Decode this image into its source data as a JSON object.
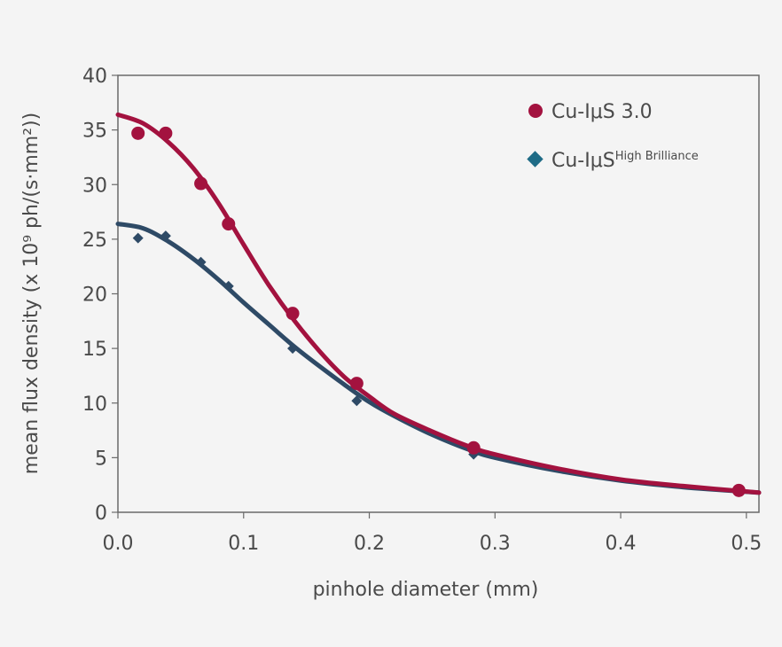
{
  "chart_data": {
    "type": "scatter",
    "xlabel": "pinhole diameter (mm)",
    "ylabel": "mean flux density (x 10⁹ ph/(s·mm²))",
    "xlim": [
      0,
      0.51
    ],
    "ylim": [
      0,
      40
    ],
    "xticks": [
      "0.0",
      "0.1",
      "0.2",
      "0.3",
      "0.4",
      "0.5"
    ],
    "yticks": [
      "0",
      "5",
      "10",
      "15",
      "20",
      "25",
      "30",
      "35",
      "40"
    ],
    "grid": false,
    "legend_position": "top-right",
    "series": [
      {
        "name": "Cu-IμS 3.0",
        "color": "#a3123f",
        "marker": "circle",
        "points": [
          [
            0.016,
            34.7
          ],
          [
            0.038,
            34.7
          ],
          [
            0.066,
            30.1
          ],
          [
            0.088,
            26.4
          ],
          [
            0.139,
            18.2
          ],
          [
            0.19,
            11.8
          ],
          [
            0.283,
            5.9
          ],
          [
            0.494,
            2.0
          ]
        ],
        "fit": [
          [
            0,
            36.4
          ],
          [
            0.02,
            35.6
          ],
          [
            0.04,
            33.9
          ],
          [
            0.06,
            31.5
          ],
          [
            0.08,
            28.3
          ],
          [
            0.1,
            24.5
          ],
          [
            0.12,
            20.8
          ],
          [
            0.14,
            17.6
          ],
          [
            0.16,
            14.8
          ],
          [
            0.18,
            12.4
          ],
          [
            0.2,
            10.6
          ],
          [
            0.22,
            9.0
          ],
          [
            0.25,
            7.4
          ],
          [
            0.28,
            6.0
          ],
          [
            0.3,
            5.3
          ],
          [
            0.35,
            4.0
          ],
          [
            0.4,
            3.0
          ],
          [
            0.45,
            2.4
          ],
          [
            0.51,
            1.8
          ]
        ]
      },
      {
        "name_main": "Cu-IμS",
        "name_sup": "High Brilliance",
        "color": "#2e4a66",
        "marker_color": "#1e6b86",
        "marker": "diamond",
        "points": [
          [
            0.016,
            25.1
          ],
          [
            0.038,
            25.3
          ],
          [
            0.066,
            22.9
          ],
          [
            0.088,
            20.7
          ],
          [
            0.139,
            15.0
          ],
          [
            0.19,
            10.2
          ],
          [
            0.283,
            5.3
          ],
          [
            0.494,
            1.9
          ]
        ],
        "fit": [
          [
            0,
            26.4
          ],
          [
            0.02,
            26.0
          ],
          [
            0.04,
            24.8
          ],
          [
            0.06,
            23.2
          ],
          [
            0.08,
            21.3
          ],
          [
            0.1,
            19.2
          ],
          [
            0.12,
            17.2
          ],
          [
            0.14,
            15.2
          ],
          [
            0.16,
            13.4
          ],
          [
            0.18,
            11.7
          ],
          [
            0.2,
            10.1
          ],
          [
            0.22,
            8.8
          ],
          [
            0.25,
            7.1
          ],
          [
            0.28,
            5.7
          ],
          [
            0.3,
            5.0
          ],
          [
            0.35,
            3.8
          ],
          [
            0.4,
            2.9
          ],
          [
            0.45,
            2.3
          ],
          [
            0.51,
            1.8
          ]
        ]
      }
    ]
  }
}
